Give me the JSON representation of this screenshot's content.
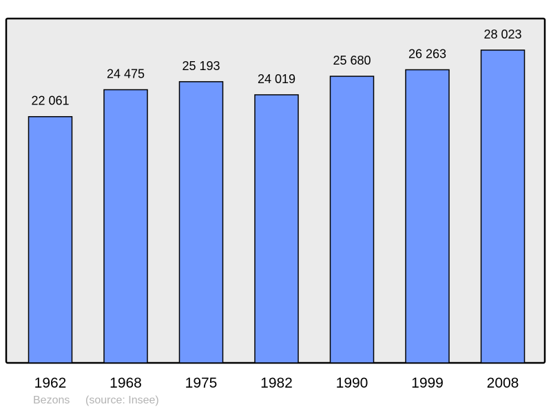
{
  "chart_data": {
    "type": "bar",
    "categories": [
      "1962",
      "1968",
      "1975",
      "1982",
      "1990",
      "1999",
      "2008"
    ],
    "values": [
      22061,
      24475,
      25193,
      24019,
      25680,
      26263,
      28023
    ],
    "data_labels": [
      "22 061",
      "24 475",
      "25 193",
      "24 019",
      "25 680",
      "26 263",
      "28 023"
    ],
    "title": "",
    "xlabel": "",
    "ylabel": "",
    "ylim": [
      0,
      30850
    ],
    "grid": false,
    "bar_color": "#7098ff",
    "background_color": "#ebebeb"
  },
  "footer": {
    "place": "Bezons",
    "source": "(source: Insee)"
  }
}
